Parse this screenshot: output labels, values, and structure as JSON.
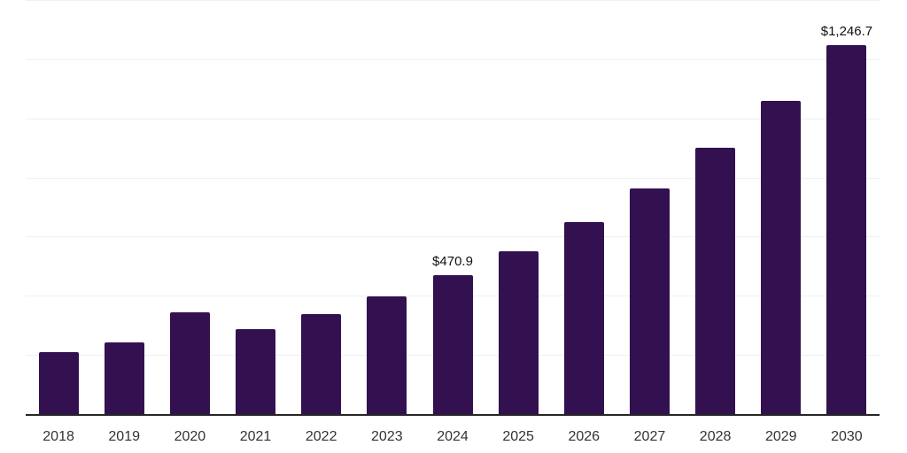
{
  "chart_data": {
    "type": "bar",
    "title": "",
    "xlabel": "",
    "ylabel": "",
    "categories": [
      "2018",
      "2019",
      "2020",
      "2021",
      "2022",
      "2023",
      "2024",
      "2025",
      "2026",
      "2027",
      "2028",
      "2029",
      "2030"
    ],
    "values": [
      210.5,
      243.3,
      344.8,
      288.1,
      338.8,
      398.5,
      470.9,
      550.7,
      649.3,
      762.7,
      900.0,
      1058.2,
      1246.7
    ],
    "data_labels": [
      {
        "category": "2024",
        "index": 6,
        "text": "$470.9"
      },
      {
        "category": "2030",
        "index": 12,
        "text": "$1,246.7"
      }
    ],
    "ylim": [
      0,
      1400
    ],
    "gridline_step": 200,
    "grid": "horizontal",
    "legend": "none",
    "colors": {
      "bar": "#331150",
      "axis_line": "#262626",
      "tick_label": "#333333",
      "gridline": "#f0f0f0",
      "data_label": "#111111",
      "background": "#ffffff"
    }
  }
}
